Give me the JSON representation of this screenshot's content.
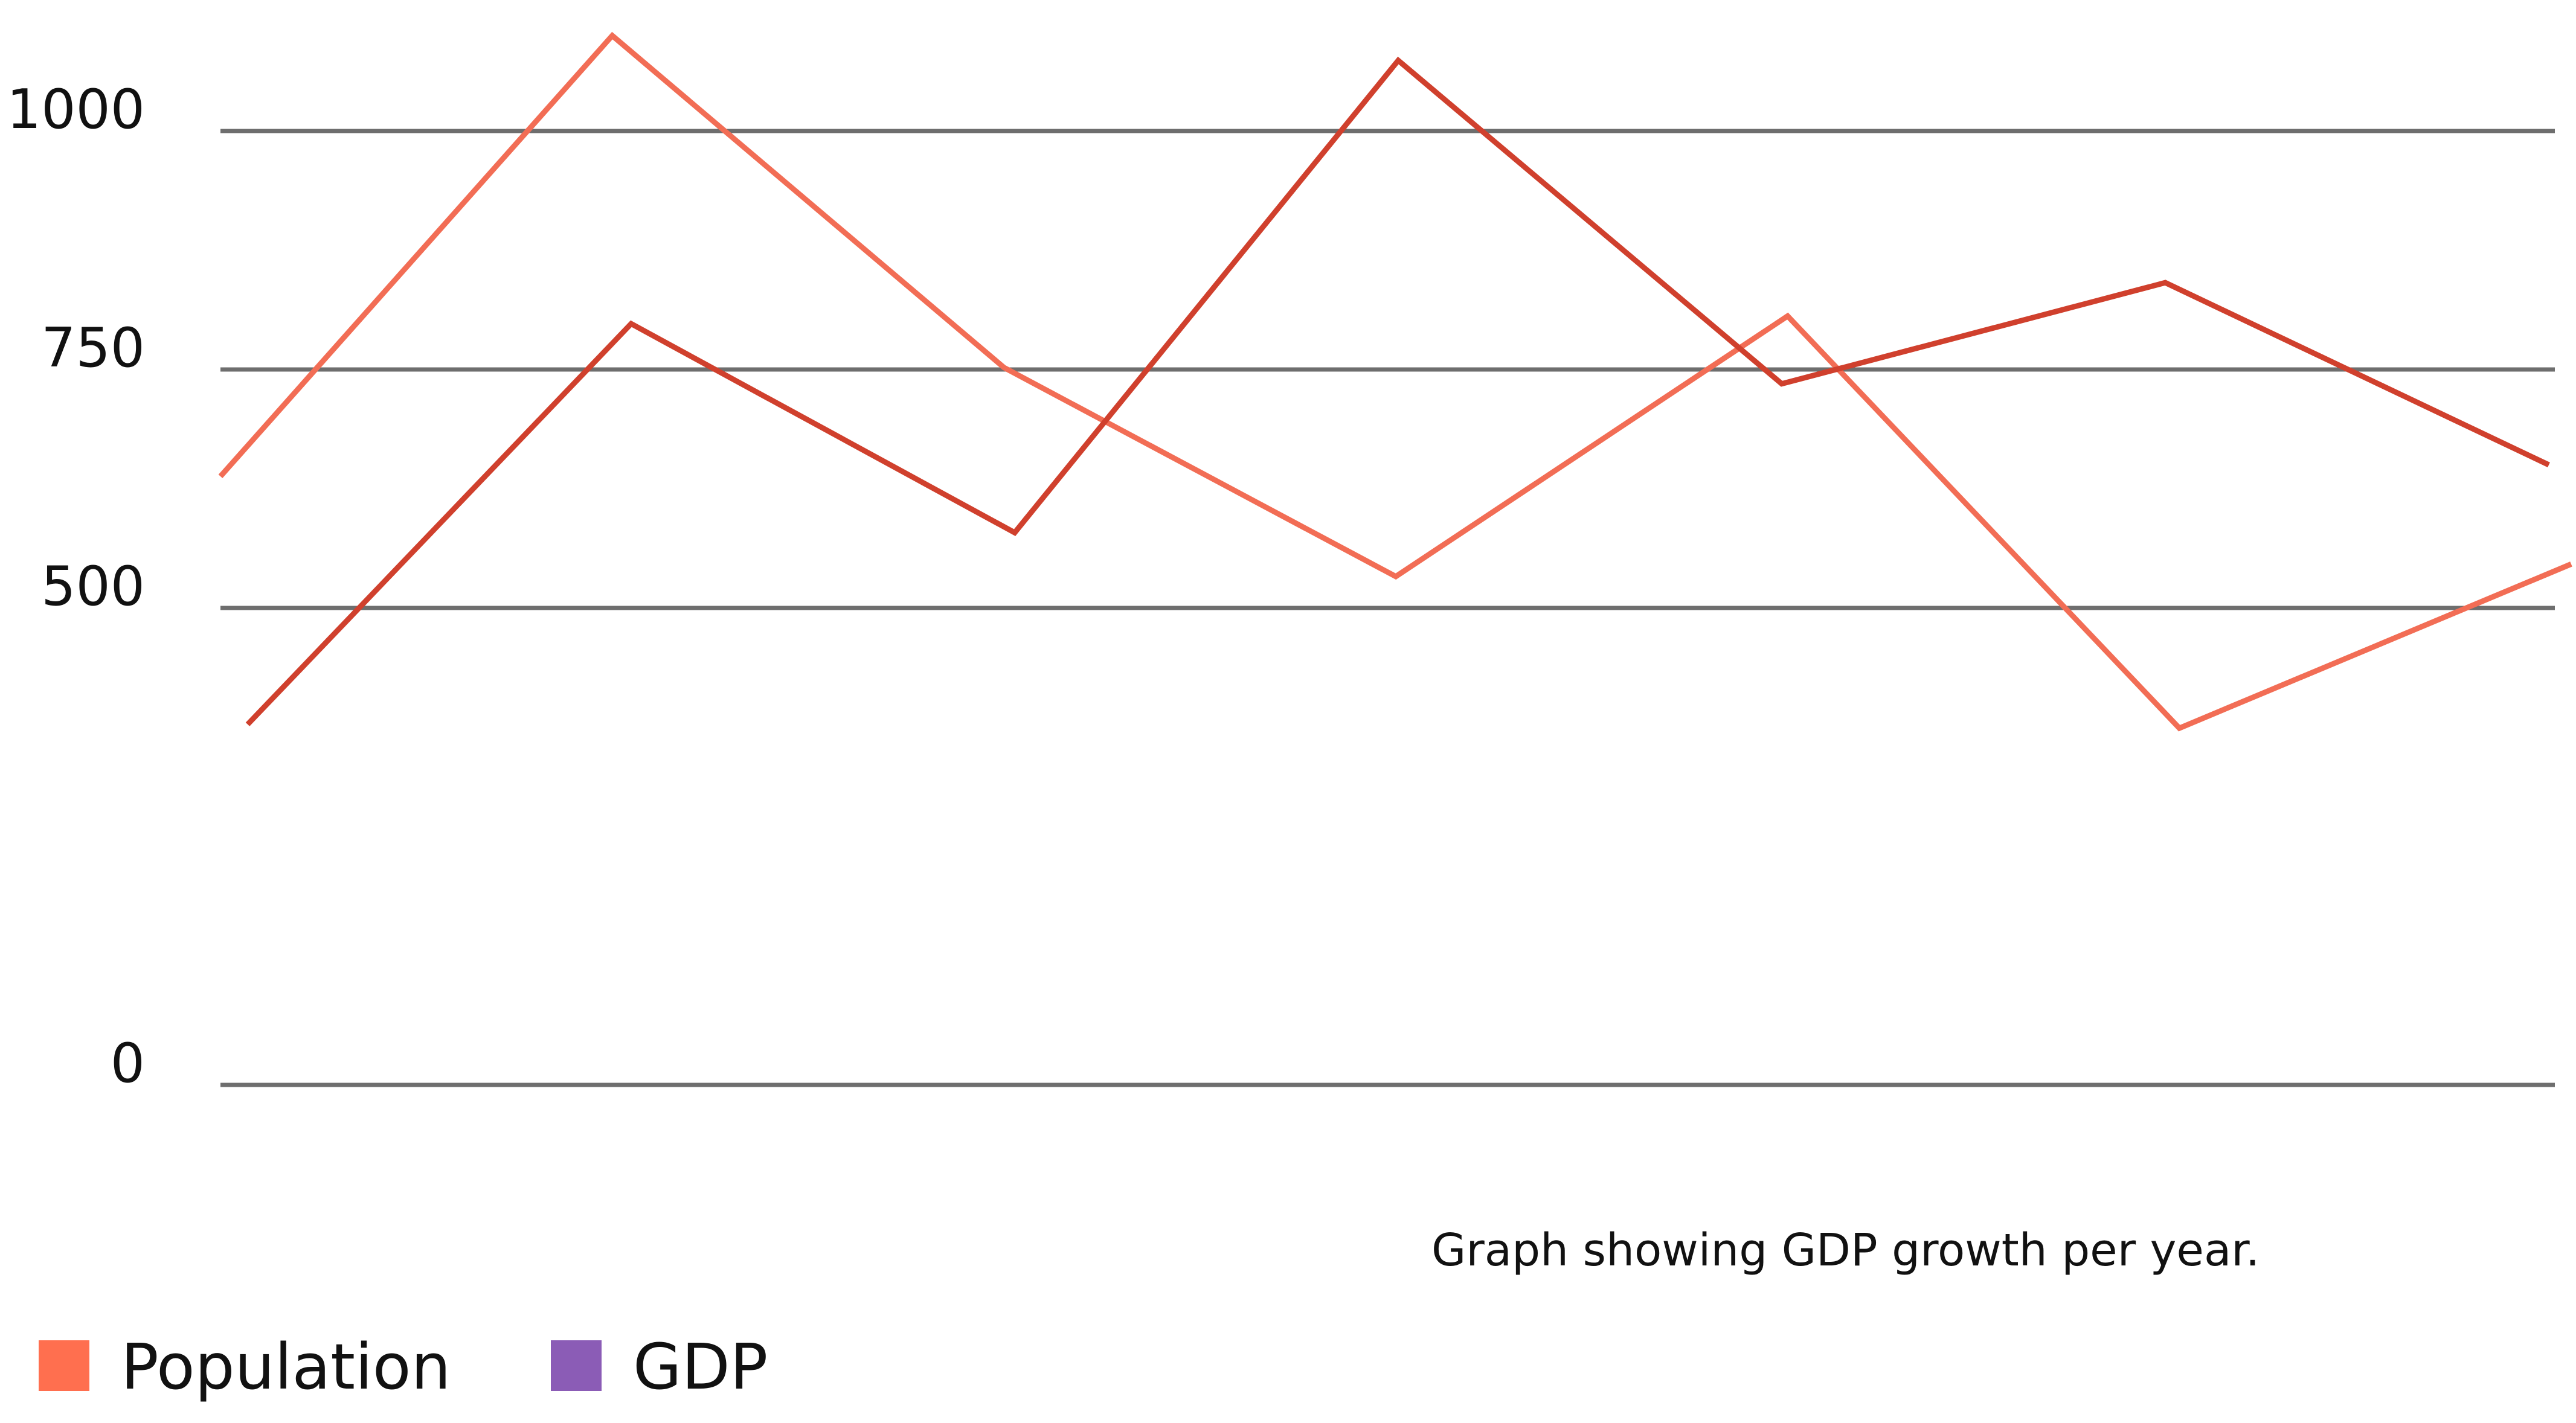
{
  "chart_data": {
    "type": "line",
    "title": "",
    "caption": "Graph showing GDP growth per year.",
    "xlabel": "",
    "ylabel": "",
    "ylim": [
      0,
      1000
    ],
    "y_ticks": [
      0,
      500,
      750,
      1000
    ],
    "y_tick_labels": [
      "0",
      "500",
      "750",
      "1000"
    ],
    "grid": true,
    "legend_position": "bottom-left",
    "series": [
      {
        "name": "Population",
        "color": "#f26d55",
        "x": [
          0,
          1,
          2,
          3,
          4,
          5,
          6
        ],
        "values": [
          638,
          1100,
          752,
          533,
          806,
          374,
          546
        ]
      },
      {
        "name": "GDP",
        "color": "#d0402d",
        "x": [
          0,
          1,
          2,
          3,
          4,
          5,
          6
        ],
        "values": [
          378,
          798,
          579,
          1074,
          735,
          841,
          650
        ]
      }
    ],
    "legend": [
      {
        "name": "Population",
        "color": "#ff6f4f"
      },
      {
        "name": "GDP",
        "color": "#8b5cb6"
      }
    ]
  }
}
